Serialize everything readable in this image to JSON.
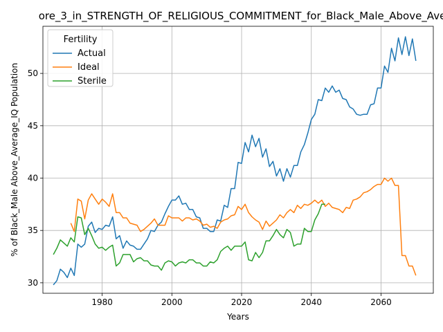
{
  "chart_data": {
    "type": "line",
    "title": "ore_3_in_STRENGTH_OF_RELIGIOUS_COMMITMENT_for_Black_Male_Above_Ave",
    "xlabel": "Years",
    "ylabel": "% of Black_Male Above_Average_IQ Population",
    "xlim": [
      1963,
      2075
    ],
    "ylim": [
      29.0,
      54.5
    ],
    "xticks": [
      1980,
      2000,
      2020,
      2040,
      2060
    ],
    "yticks": [
      30,
      35,
      40,
      45,
      50
    ],
    "grid": true,
    "legend": {
      "title": "Fertility",
      "placement": "upper left"
    },
    "series": [
      {
        "name": "Actual",
        "color": "#1f77b4",
        "x": [
          1966,
          1967,
          1968,
          1969,
          1970,
          1971,
          1972,
          1973,
          1974,
          1975,
          1976,
          1977,
          1978,
          1979,
          1980,
          1981,
          1982,
          1983,
          1984,
          1985,
          1986,
          1987,
          1988,
          1989,
          1990,
          1991,
          1992,
          1993,
          1994,
          1995,
          1996,
          1997,
          1998,
          1999,
          2000,
          2001,
          2002,
          2003,
          2004,
          2005,
          2006,
          2007,
          2008,
          2009,
          2010,
          2011,
          2012,
          2013,
          2014,
          2015,
          2016,
          2017,
          2018,
          2019,
          2020,
          2021,
          2022,
          2023,
          2024,
          2025,
          2026,
          2027,
          2028,
          2029,
          2030,
          2031,
          2032,
          2033,
          2034,
          2035,
          2036,
          2037,
          2038,
          2039,
          2040,
          2041,
          2042,
          2043,
          2044,
          2045,
          2046,
          2047,
          2048,
          2049,
          2050,
          2051,
          2052,
          2053,
          2054,
          2055,
          2056,
          2057,
          2058,
          2059,
          2060,
          2061,
          2062,
          2063,
          2064,
          2065,
          2066,
          2067,
          2068,
          2069,
          2070
        ],
        "values": [
          29.8,
          30.2,
          31.3,
          31.0,
          30.5,
          31.4,
          30.7,
          33.7,
          33.4,
          33.7,
          35.4,
          35.8,
          34.8,
          35.2,
          35.1,
          35.5,
          35.4,
          36.3,
          34.2,
          34.5,
          33.3,
          34.0,
          33.6,
          33.5,
          33.2,
          33.2,
          33.7,
          34.2,
          35.0,
          34.9,
          35.5,
          35.8,
          36.6,
          37.3,
          37.9,
          37.9,
          38.3,
          37.5,
          37.6,
          37.0,
          37.0,
          36.3,
          36.2,
          35.2,
          35.2,
          34.9,
          34.9,
          36.0,
          35.9,
          37.4,
          37.2,
          39.0,
          39.0,
          41.5,
          41.4,
          43.4,
          42.5,
          44.1,
          43.0,
          43.8,
          42.0,
          42.8,
          41.1,
          41.6,
          40.2,
          40.9,
          39.7,
          40.9,
          40.1,
          41.2,
          41.2,
          42.5,
          43.2,
          44.3,
          45.6,
          46.1,
          47.5,
          47.4,
          48.6,
          48.2,
          48.8,
          48.2,
          48.4,
          47.6,
          47.5,
          46.8,
          46.6,
          46.1,
          46.0,
          46.1,
          46.1,
          47.0,
          47.1,
          48.6,
          48.6,
          50.7,
          50.1,
          52.4,
          51.2,
          53.4,
          51.8,
          53.5,
          51.7,
          53.3,
          51.2
        ]
      },
      {
        "name": "Ideal",
        "color": "#ff7f0e",
        "x": [
          1971,
          1972,
          1973,
          1974,
          1975,
          1976,
          1977,
          1978,
          1979,
          1980,
          1981,
          1982,
          1983,
          1984,
          1985,
          1986,
          1987,
          1988,
          1989,
          1990,
          1991,
          1992,
          1993,
          1994,
          1995,
          1996,
          1997,
          1998,
          1999,
          2000,
          2001,
          2002,
          2003,
          2004,
          2005,
          2006,
          2007,
          2008,
          2009,
          2010,
          2011,
          2012,
          2013,
          2014,
          2015,
          2016,
          2017,
          2018,
          2019,
          2020,
          2021,
          2022,
          2023,
          2024,
          2025,
          2026,
          2027,
          2028,
          2029,
          2030,
          2031,
          2032,
          2033,
          2034,
          2035,
          2036,
          2037,
          2038,
          2039,
          2040,
          2041,
          2042,
          2043,
          2044,
          2045,
          2046,
          2047,
          2048,
          2049,
          2050,
          2051,
          2052,
          2053,
          2054,
          2055,
          2056,
          2057,
          2058,
          2059,
          2060,
          2061,
          2062,
          2063,
          2064,
          2065,
          2066,
          2067,
          2068,
          2069,
          2070
        ],
        "values": [
          35.7,
          34.9,
          38.0,
          37.8,
          36.1,
          37.9,
          38.5,
          38.0,
          37.5,
          38.0,
          37.7,
          37.3,
          38.5,
          36.7,
          36.7,
          36.2,
          36.2,
          35.7,
          35.6,
          35.5,
          34.9,
          35.1,
          35.4,
          35.7,
          36.1,
          35.5,
          35.5,
          35.5,
          36.4,
          36.2,
          36.2,
          36.2,
          35.9,
          36.2,
          36.2,
          36.0,
          36.1,
          35.9,
          35.5,
          35.6,
          35.3,
          35.4,
          35.2,
          35.8,
          36.0,
          36.1,
          36.4,
          36.5,
          37.3,
          37.0,
          37.5,
          36.7,
          36.3,
          36.0,
          35.8,
          35.1,
          35.9,
          35.4,
          35.7,
          36.0,
          36.5,
          36.2,
          36.7,
          37.0,
          36.7,
          37.4,
          37.1,
          37.5,
          37.4,
          37.6,
          37.9,
          37.6,
          37.9,
          37.3,
          37.6,
          37.2,
          37.1,
          37.0,
          36.7,
          37.2,
          37.1,
          37.9,
          38.0,
          38.2,
          38.6,
          38.7,
          38.9,
          39.2,
          39.4,
          39.4,
          40.0,
          39.7,
          40.0,
          39.3,
          39.3,
          32.6,
          32.6,
          31.6,
          31.6,
          30.7
        ]
      },
      {
        "name": "Sterile",
        "color": "#2ca02c",
        "x": [
          1966,
          1967,
          1968,
          1969,
          1970,
          1971,
          1972,
          1973,
          1974,
          1975,
          1976,
          1977,
          1978,
          1979,
          1980,
          1981,
          1982,
          1983,
          1984,
          1985,
          1986,
          1987,
          1988,
          1989,
          1990,
          1991,
          1992,
          1993,
          1994,
          1995,
          1996,
          1997,
          1998,
          1999,
          2000,
          2001,
          2002,
          2003,
          2004,
          2005,
          2006,
          2007,
          2008,
          2009,
          2010,
          2011,
          2012,
          2013,
          2014,
          2015,
          2016,
          2017,
          2018,
          2019,
          2020,
          2021,
          2022,
          2023,
          2024,
          2025,
          2026,
          2027,
          2028,
          2029,
          2030,
          2031,
          2032,
          2033,
          2034,
          2035,
          2036,
          2037,
          2038,
          2039,
          2040,
          2041,
          2042,
          2043,
          2044
        ],
        "values": [
          32.7,
          33.3,
          34.1,
          33.8,
          33.5,
          34.3,
          33.9,
          36.3,
          36.2,
          34.6,
          35.2,
          34.5,
          33.7,
          33.3,
          33.4,
          33.1,
          33.4,
          33.6,
          31.6,
          31.9,
          32.7,
          32.7,
          32.7,
          32.0,
          32.3,
          32.4,
          32.1,
          32.1,
          31.7,
          31.6,
          31.6,
          31.2,
          31.9,
          32.1,
          32.0,
          31.6,
          31.9,
          32.0,
          31.9,
          32.2,
          32.2,
          31.9,
          31.9,
          31.6,
          31.6,
          32.0,
          31.9,
          32.2,
          33.0,
          33.3,
          33.5,
          33.1,
          33.5,
          33.5,
          33.5,
          33.9,
          32.2,
          32.1,
          32.9,
          32.4,
          32.9,
          34.0,
          34.0,
          34.5,
          35.1,
          34.6,
          34.3,
          35.1,
          34.8,
          33.5,
          33.7,
          33.7,
          35.2,
          34.9,
          34.9,
          36.0,
          36.6,
          37.5,
          37.5
        ]
      }
    ]
  }
}
